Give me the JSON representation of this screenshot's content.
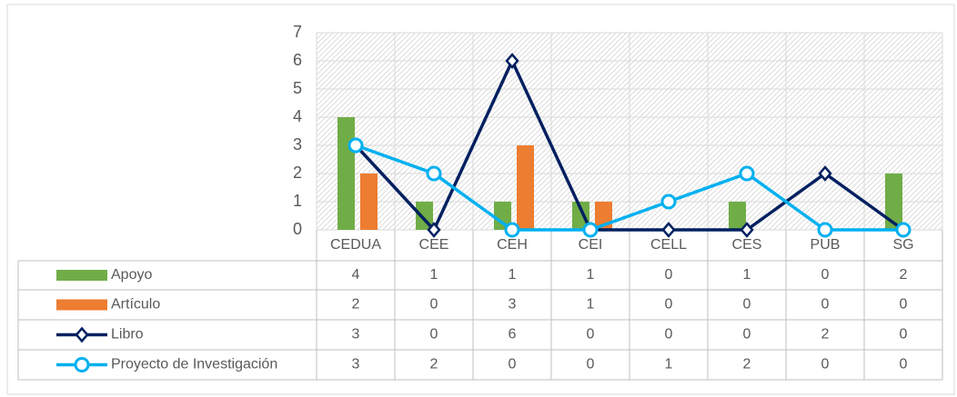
{
  "chart_data": {
    "type": "bar-line-table",
    "categories": [
      "CEDUA",
      "CEE",
      "CEH",
      "CEI",
      "CELL",
      "CES",
      "PUB",
      "SG"
    ],
    "ylim": [
      0,
      7
    ],
    "yticks": [
      0,
      1,
      2,
      3,
      4,
      5,
      6,
      7
    ],
    "grid": true,
    "series": [
      {
        "name": "Apoyo",
        "type": "bar",
        "color": "#70ad47",
        "values": [
          4,
          1,
          1,
          1,
          0,
          1,
          0,
          2
        ]
      },
      {
        "name": "Artículo",
        "type": "bar",
        "color": "#ed7d31",
        "values": [
          2,
          0,
          3,
          1,
          0,
          0,
          0,
          0
        ]
      },
      {
        "name": "Libro",
        "type": "line",
        "marker": "diamond",
        "color": "#002060",
        "values": [
          3,
          0,
          6,
          0,
          0,
          0,
          2,
          0
        ]
      },
      {
        "name": "Proyecto de Investigación",
        "type": "line",
        "marker": "circle",
        "color": "#00b0f0",
        "values": [
          3,
          2,
          0,
          0,
          1,
          2,
          0,
          0
        ]
      }
    ]
  }
}
